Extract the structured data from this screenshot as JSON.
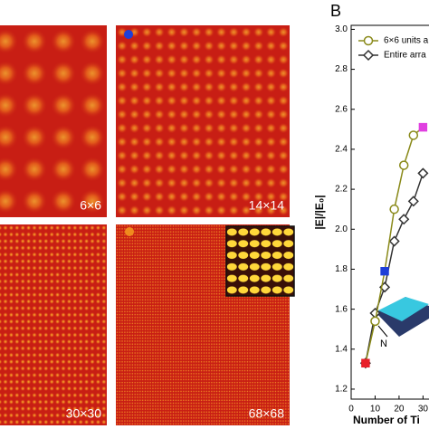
{
  "panels": [
    {
      "label": "6×6",
      "n": 6
    },
    {
      "label": "14×14",
      "n": 14
    },
    {
      "label": "30×30",
      "n": 30
    },
    {
      "label": "68×68",
      "n": 68
    }
  ],
  "inset_label": "N",
  "chart_data": {
    "type": "line",
    "panel_letter": "B",
    "x_label": "Number of Ti",
    "y_label": "|E|/|E₀|",
    "xlim": [
      0,
      32.5
    ],
    "xticks": [
      0,
      10,
      20,
      30
    ],
    "ylim": [
      1.15,
      3.02
    ],
    "yticks": [
      1.2,
      1.4,
      1.6,
      1.8,
      {
        "value": 2,
        "label": "2.0"
      },
      2.2,
      2.4,
      2.6,
      2.8,
      {
        "value": 3,
        "label": "3.0"
      }
    ],
    "series": [
      {
        "name": "6×6 units a",
        "color": "#8a8a1a",
        "marker": "circle",
        "x": [
          6,
          10,
          14,
          18,
          22,
          26,
          30
        ],
        "values": [
          1.33,
          1.54,
          1.79,
          2.1,
          2.32,
          2.47,
          2.51
        ]
      },
      {
        "name": "Entire arra",
        "color": "#333333",
        "marker": "diamond",
        "x": [
          6,
          10,
          14,
          18,
          22,
          26,
          30
        ],
        "values": [
          1.33,
          1.58,
          1.71,
          1.94,
          2.05,
          2.14,
          2.28
        ]
      }
    ],
    "highlights": [
      {
        "series": 0,
        "index": 0,
        "color": "#e8202a"
      },
      {
        "series": 0,
        "index": 2,
        "color": "#1e3fd8"
      },
      {
        "series": 0,
        "index": 6,
        "color": "#e040e0"
      }
    ]
  }
}
